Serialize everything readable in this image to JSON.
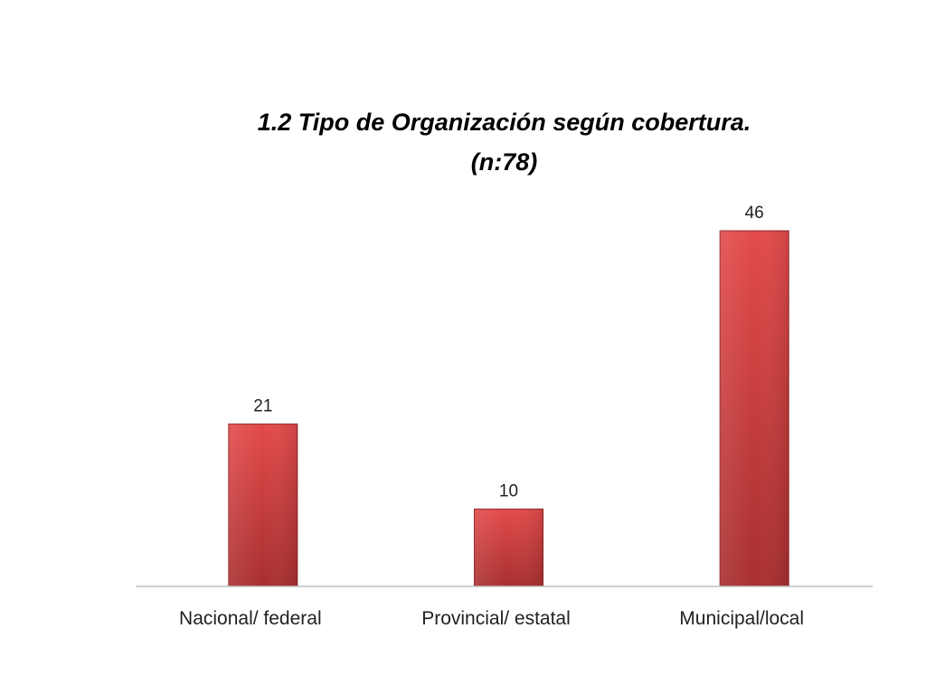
{
  "chart_data": {
    "type": "bar",
    "title_lines": [
      "1.2 Tipo de Organización según cobertura.",
      "(n:78)"
    ],
    "categories": [
      "Nacional/ federal",
      "Provincial/ estatal",
      "Municipal/local"
    ],
    "values": [
      21,
      10,
      46
    ],
    "data_labels": [
      "21",
      "10",
      "46"
    ],
    "xlabel": "",
    "ylabel": "",
    "ylim": [
      0,
      46
    ],
    "grid": false,
    "legend": "none",
    "colors": {
      "bar_light": "#e34a4a",
      "bar_dark": "#a82f2f",
      "bar_edge": "#8e2424",
      "axis": "#bfbfbf"
    }
  }
}
